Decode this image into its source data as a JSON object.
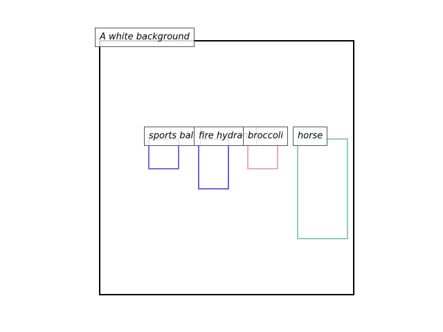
{
  "background": {
    "caption": "A white background"
  },
  "objects": [
    {
      "label": "sports ball",
      "color": "#6f6fe0"
    },
    {
      "label": "fire hydrant",
      "color": "#6a62e0"
    },
    {
      "label": "broccoli",
      "color": "#f0a8bc"
    },
    {
      "label": "horse",
      "color": "#8ccfbb"
    }
  ]
}
